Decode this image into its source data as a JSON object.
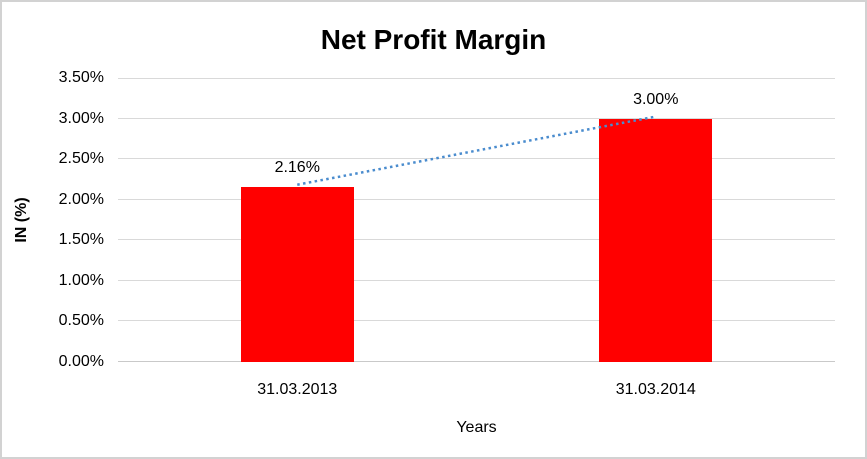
{
  "chart_data": {
    "type": "bar",
    "title": "Net Profit Margin",
    "xlabel": "Years",
    "ylabel": "IN (%)",
    "categories": [
      "31.03.2013",
      "31.03.2014"
    ],
    "values": [
      2.16,
      3.0
    ],
    "data_labels": [
      "2.16%",
      "3.00%"
    ],
    "ylim": [
      0,
      3.5
    ],
    "ytick_step": 0.5,
    "ytick_labels": [
      "0.00%",
      "0.50%",
      "1.00%",
      "1.50%",
      "2.00%",
      "2.50%",
      "3.00%",
      "3.50%"
    ],
    "grid": true,
    "legend": "none",
    "bar_color": "#ff0000",
    "gridline_color": "#d9d9d9",
    "trendline": {
      "type": "linear",
      "style": "dotted",
      "color": "#4a8cce",
      "from_value": 2.16,
      "to_value": 3.0
    }
  }
}
